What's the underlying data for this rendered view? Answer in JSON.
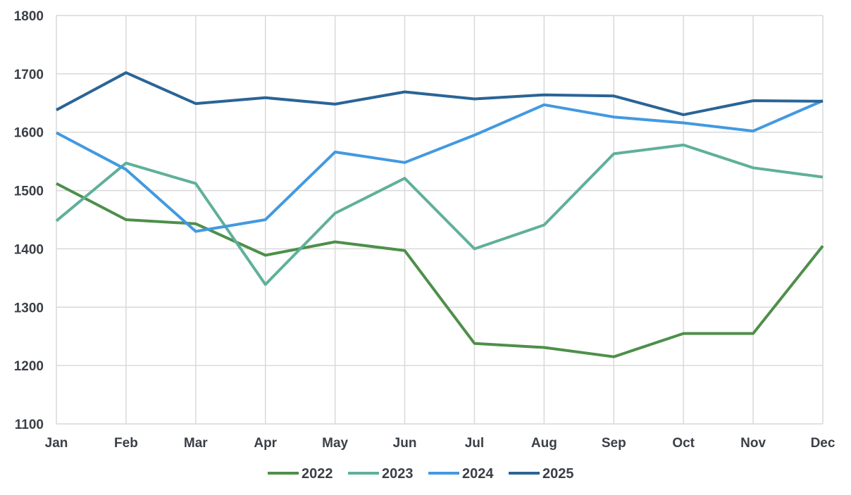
{
  "chart_data": {
    "type": "line",
    "title": "",
    "xlabel": "",
    "ylabel": "",
    "categories": [
      "Jan",
      "Feb",
      "Mar",
      "Apr",
      "May",
      "Jun",
      "Jul",
      "Aug",
      "Sep",
      "Oct",
      "Nov",
      "Dec"
    ],
    "ylim": [
      1100,
      1800
    ],
    "yticks": [
      1100,
      1200,
      1300,
      1400,
      1500,
      1600,
      1700,
      1800
    ],
    "grid": true,
    "legend_position": "bottom",
    "series": [
      {
        "name": "2022",
        "color": "#4e8f4a",
        "values": [
          1512,
          1450,
          1443,
          1389,
          1412,
          1397,
          1238,
          1231,
          1215,
          1255,
          1255,
          1405
        ]
      },
      {
        "name": "2023",
        "color": "#5fb09a",
        "values": [
          1448,
          1547,
          1512,
          1339,
          1461,
          1521,
          1400,
          1441,
          1563,
          1578,
          1539,
          1523
        ]
      },
      {
        "name": "2024",
        "color": "#4299e1",
        "values": [
          1599,
          1536,
          1430,
          1450,
          1566,
          1548,
          1595,
          1647,
          1626,
          1616,
          1602,
          1654
        ]
      },
      {
        "name": "2025",
        "color": "#2a6496",
        "values": [
          1638,
          1702,
          1649,
          1659,
          1648,
          1669,
          1657,
          1664,
          1662,
          1630,
          1654,
          1653
        ]
      }
    ]
  }
}
